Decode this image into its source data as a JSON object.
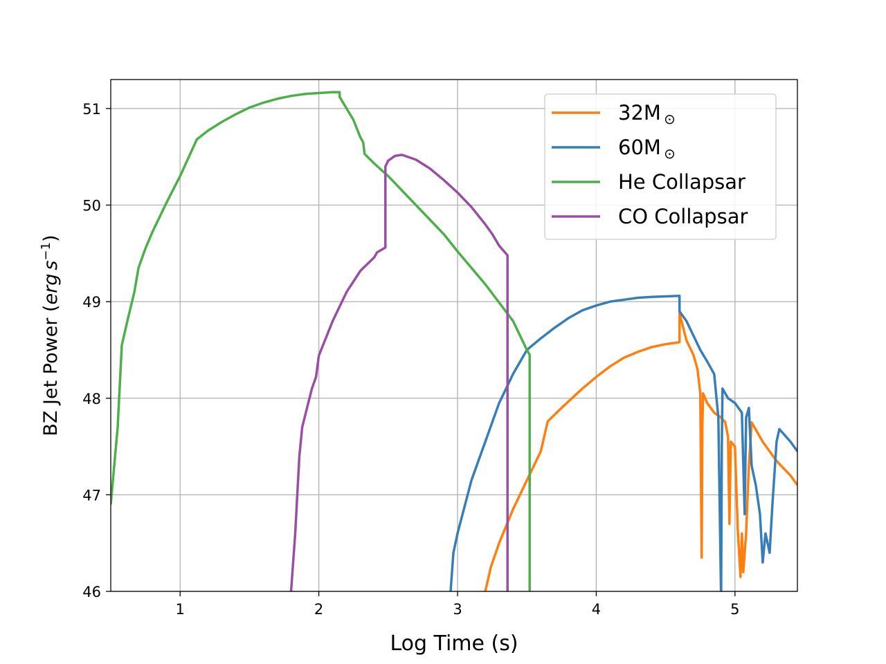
{
  "chart_data": {
    "type": "line",
    "title": "",
    "xlabel": "Log Time (s)",
    "ylabel": {
      "prefix": "BZ Jet Power (",
      "unit_main": "erg",
      "unit_s": "s",
      "unit_exp": "−1",
      "suffix": ")"
    },
    "xlim": [
      0.5,
      5.45
    ],
    "ylim": [
      46,
      51.3
    ],
    "xticks": [
      1,
      2,
      3,
      4,
      5
    ],
    "yticks": [
      46,
      47,
      48,
      49,
      50,
      51
    ],
    "grid": true,
    "legend_position": "top-right",
    "series": [
      {
        "name": "32M",
        "name_sub": "⊙",
        "color": "#ff7f0e",
        "points": [
          [
            3.2,
            46.0
          ],
          [
            3.24,
            46.25
          ],
          [
            3.3,
            46.5
          ],
          [
            3.4,
            46.85
          ],
          [
            3.5,
            47.15
          ],
          [
            3.6,
            47.45
          ],
          [
            3.65,
            47.76
          ],
          [
            3.75,
            47.9
          ],
          [
            3.9,
            48.1
          ],
          [
            4.0,
            48.22
          ],
          [
            4.1,
            48.33
          ],
          [
            4.2,
            48.42
          ],
          [
            4.3,
            48.48
          ],
          [
            4.4,
            48.53
          ],
          [
            4.5,
            48.56
          ],
          [
            4.6,
            48.58
          ],
          [
            4.6,
            48.88
          ],
          [
            4.65,
            48.6
          ],
          [
            4.7,
            48.45
          ],
          [
            4.73,
            48.3
          ],
          [
            4.75,
            48.05
          ],
          [
            4.76,
            46.35
          ],
          [
            4.765,
            47.7
          ],
          [
            4.77,
            48.05
          ],
          [
            4.8,
            47.95
          ],
          [
            4.85,
            47.85
          ],
          [
            4.9,
            47.8
          ],
          [
            4.93,
            47.75
          ],
          [
            4.95,
            47.6
          ],
          [
            4.96,
            46.7
          ],
          [
            4.97,
            47.55
          ],
          [
            5.0,
            47.5
          ],
          [
            5.02,
            46.65
          ],
          [
            5.04,
            46.15
          ],
          [
            5.05,
            46.6
          ],
          [
            5.06,
            46.2
          ],
          [
            5.08,
            46.6
          ],
          [
            5.1,
            47.3
          ],
          [
            5.12,
            47.75
          ],
          [
            5.2,
            47.55
          ],
          [
            5.3,
            47.35
          ],
          [
            5.4,
            47.2
          ],
          [
            5.45,
            47.1
          ]
        ]
      },
      {
        "name": "60M",
        "name_sub": "⊙",
        "color": "#377eb8",
        "points": [
          [
            2.95,
            46.0
          ],
          [
            2.97,
            46.4
          ],
          [
            3.0,
            46.6
          ],
          [
            3.1,
            47.15
          ],
          [
            3.2,
            47.55
          ],
          [
            3.3,
            47.95
          ],
          [
            3.4,
            48.25
          ],
          [
            3.5,
            48.5
          ],
          [
            3.6,
            48.62
          ],
          [
            3.7,
            48.73
          ],
          [
            3.8,
            48.83
          ],
          [
            3.9,
            48.91
          ],
          [
            4.0,
            48.96
          ],
          [
            4.1,
            49.0
          ],
          [
            4.2,
            49.02
          ],
          [
            4.3,
            49.04
          ],
          [
            4.4,
            49.05
          ],
          [
            4.5,
            49.055
          ],
          [
            4.6,
            49.06
          ],
          [
            4.6,
            48.9
          ],
          [
            4.65,
            48.8
          ],
          [
            4.7,
            48.65
          ],
          [
            4.75,
            48.5
          ],
          [
            4.8,
            48.38
          ],
          [
            4.85,
            48.25
          ],
          [
            4.88,
            47.8
          ],
          [
            4.9,
            45.9
          ],
          [
            4.905,
            47.5
          ],
          [
            4.91,
            48.1
          ],
          [
            4.95,
            48.0
          ],
          [
            5.0,
            47.95
          ],
          [
            5.05,
            47.85
          ],
          [
            5.07,
            46.8
          ],
          [
            5.08,
            47.8
          ],
          [
            5.1,
            47.9
          ],
          [
            5.12,
            47.3
          ],
          [
            5.15,
            47.1
          ],
          [
            5.18,
            46.8
          ],
          [
            5.2,
            46.3
          ],
          [
            5.22,
            46.6
          ],
          [
            5.25,
            46.4
          ],
          [
            5.27,
            46.9
          ],
          [
            5.3,
            47.55
          ],
          [
            5.32,
            47.68
          ],
          [
            5.4,
            47.55
          ],
          [
            5.45,
            47.45
          ]
        ]
      },
      {
        "name": "He Collapsar",
        "name_sub": "",
        "color": "#4daf4a",
        "points": [
          [
            0.5,
            46.9
          ],
          [
            0.55,
            47.7
          ],
          [
            0.58,
            48.55
          ],
          [
            0.62,
            48.8
          ],
          [
            0.67,
            49.1
          ],
          [
            0.7,
            49.35
          ],
          [
            0.75,
            49.55
          ],
          [
            0.8,
            49.72
          ],
          [
            0.9,
            50.02
          ],
          [
            1.0,
            50.3
          ],
          [
            1.12,
            50.68
          ],
          [
            1.2,
            50.77
          ],
          [
            1.3,
            50.86
          ],
          [
            1.4,
            50.94
          ],
          [
            1.5,
            51.01
          ],
          [
            1.6,
            51.06
          ],
          [
            1.7,
            51.1
          ],
          [
            1.8,
            51.13
          ],
          [
            1.9,
            51.15
          ],
          [
            2.0,
            51.16
          ],
          [
            2.1,
            51.17
          ],
          [
            2.15,
            51.17
          ],
          [
            2.15,
            51.12
          ],
          [
            2.2,
            51.0
          ],
          [
            2.25,
            50.88
          ],
          [
            2.3,
            50.7
          ],
          [
            2.32,
            50.65
          ],
          [
            2.33,
            50.53
          ],
          [
            2.4,
            50.43
          ],
          [
            2.5,
            50.3
          ],
          [
            2.7,
            50.0
          ],
          [
            2.9,
            49.7
          ],
          [
            3.0,
            49.52
          ],
          [
            3.2,
            49.18
          ],
          [
            3.4,
            48.8
          ],
          [
            3.5,
            48.5
          ],
          [
            3.52,
            48.45
          ],
          [
            3.52,
            46.0
          ]
        ]
      },
      {
        "name": "CO Collapsar",
        "name_sub": "",
        "color": "#984ea3",
        "points": [
          [
            1.8,
            46.0
          ],
          [
            1.83,
            46.6
          ],
          [
            1.86,
            47.4
          ],
          [
            1.88,
            47.7
          ],
          [
            1.95,
            48.1
          ],
          [
            1.98,
            48.22
          ],
          [
            2.0,
            48.44
          ],
          [
            2.1,
            48.8
          ],
          [
            2.2,
            49.1
          ],
          [
            2.3,
            49.32
          ],
          [
            2.4,
            49.46
          ],
          [
            2.42,
            49.51
          ],
          [
            2.48,
            49.56
          ],
          [
            2.48,
            50.4
          ],
          [
            2.5,
            50.46
          ],
          [
            2.55,
            50.51
          ],
          [
            2.6,
            50.52
          ],
          [
            2.7,
            50.47
          ],
          [
            2.8,
            50.38
          ],
          [
            2.9,
            50.26
          ],
          [
            3.0,
            50.13
          ],
          [
            3.1,
            49.98
          ],
          [
            3.2,
            49.8
          ],
          [
            3.25,
            49.7
          ],
          [
            3.3,
            49.58
          ],
          [
            3.36,
            49.48
          ],
          [
            3.36,
            46.0
          ]
        ]
      }
    ]
  }
}
